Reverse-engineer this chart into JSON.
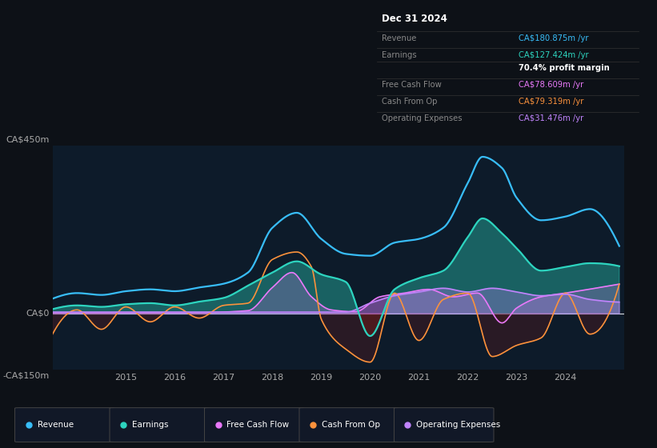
{
  "bg_color": "#0d1117",
  "plot_bg_color": "#0d1b2a",
  "title": "Dec 31 2024",
  "y_label_top": "CA$450m",
  "y_label_zero": "CA$0",
  "y_label_bottom": "-CA$150m",
  "x_ticks": [
    2015,
    2016,
    2017,
    2018,
    2019,
    2020,
    2021,
    2022,
    2023,
    2024
  ],
  "ylim": [
    -150,
    450
  ],
  "legend": [
    {
      "label": "Revenue",
      "color": "#38bdf8"
    },
    {
      "label": "Earnings",
      "color": "#2dd4bf"
    },
    {
      "label": "Free Cash Flow",
      "color": "#e879f9"
    },
    {
      "label": "Cash From Op",
      "color": "#fb923c"
    },
    {
      "label": "Operating Expenses",
      "color": "#c084fc"
    }
  ],
  "revenue_color": "#38bdf8",
  "earnings_color": "#2dd4bf",
  "fcf_color": "#e879f9",
  "cashfromop_color": "#fb923c",
  "opex_color": "#c084fc",
  "info_title": "Dec 31 2024",
  "info_rows": [
    {
      "label": "Revenue",
      "value": "CA$180.875m",
      "suffix": " /yr",
      "color": "#38bdf8",
      "bold": false
    },
    {
      "label": "Earnings",
      "value": "CA$127.424m",
      "suffix": " /yr",
      "color": "#2dd4bf",
      "bold": false
    },
    {
      "label": "",
      "value": "70.4%",
      "suffix": " profit margin",
      "color": "#ffffff",
      "bold": true
    },
    {
      "label": "Free Cash Flow",
      "value": "CA$78.609m",
      "suffix": " /yr",
      "color": "#e879f9",
      "bold": false
    },
    {
      "label": "Cash From Op",
      "value": "CA$79.319m",
      "suffix": " /yr",
      "color": "#fb923c",
      "bold": false
    },
    {
      "label": "Operating Expenses",
      "value": "CA$31.476m",
      "suffix": " /yr",
      "color": "#c084fc",
      "bold": false
    }
  ]
}
